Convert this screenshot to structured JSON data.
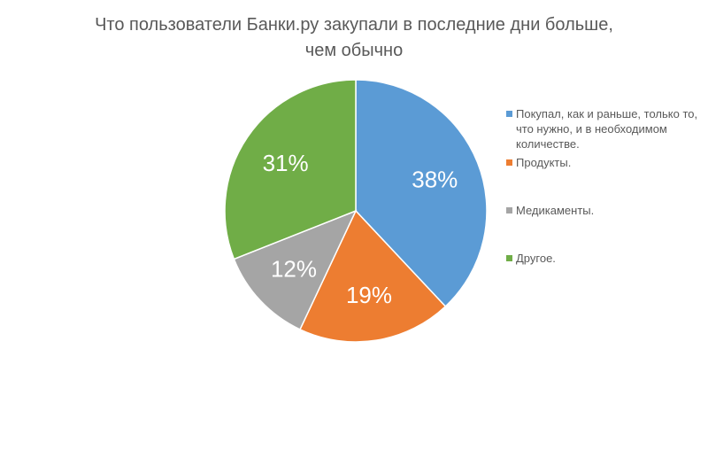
{
  "chart_data": {
    "type": "pie",
    "title_lines": [
      "Что пользователи Банки.ру закупали в последние дни больше,",
      "чем обычно"
    ],
    "categories": [
      "Покупал, как и раньше, только то, что нужно, и в необходимом количестве.",
      "Продукты.",
      "Медикаменты.",
      "Другое."
    ],
    "values": [
      38,
      19,
      12,
      31
    ],
    "value_labels": [
      "38%",
      "19%",
      "12%",
      "31%"
    ],
    "colors": [
      "#5B9BD5",
      "#ED7D31",
      "#A5A5A5",
      "#70AD47"
    ],
    "legend_position": "right"
  },
  "legend_lines": [
    [
      "Покупал, как и раньше, только то,",
      "что нужно, и в необходимом",
      "количестве."
    ],
    [
      "Продукты."
    ],
    [
      "Медикаменты."
    ],
    [
      "Другое."
    ]
  ]
}
